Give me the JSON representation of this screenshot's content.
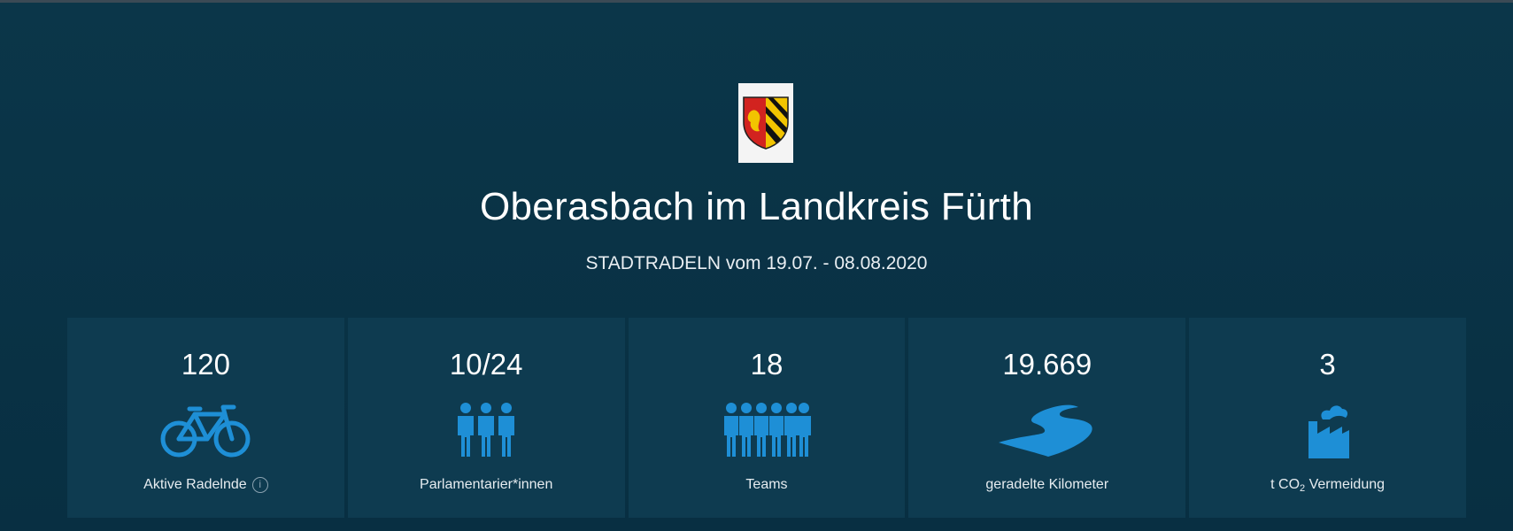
{
  "header": {
    "title": "Oberasbach im Landkreis Fürth",
    "subtitle": "STADTRADELN vom 19.07. - 08.08.2020",
    "crest_icon": "coat-of-arms"
  },
  "colors": {
    "background": "#0a3347",
    "tile": "#0e3b50",
    "accent": "#1e8fd6"
  },
  "stats": [
    {
      "value": "120",
      "label": "Aktive Radelnde",
      "icon": "bicycle-icon",
      "has_info": true
    },
    {
      "value": "10/24",
      "label": "Parlamentarier*innen",
      "icon": "people-group-icon"
    },
    {
      "value": "18",
      "label": "Teams",
      "icon": "teams-icon"
    },
    {
      "value": "19.669",
      "label": "geradelte Kilometer",
      "icon": "road-icon"
    },
    {
      "value": "3",
      "label_prefix": "t CO",
      "label_sub": "2",
      "label_suffix": " Vermeidung",
      "icon": "factory-icon"
    }
  ]
}
